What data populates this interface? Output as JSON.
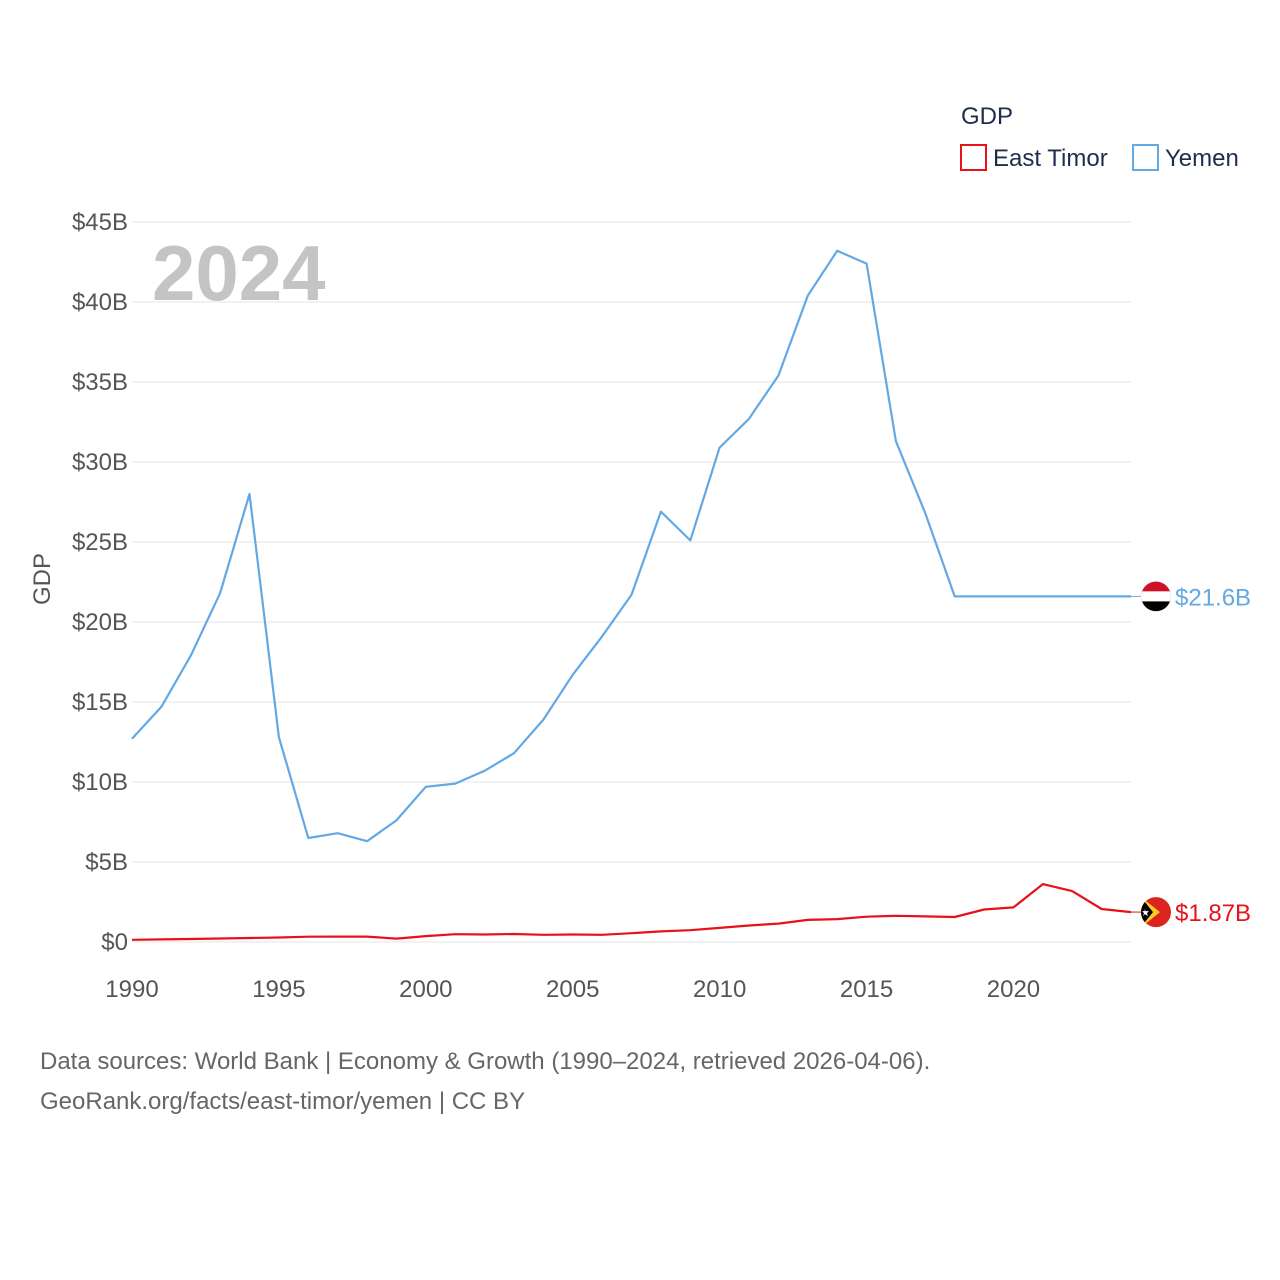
{
  "legend": {
    "title": "GDP"
  },
  "year_label": "2024",
  "footer": {
    "line1": "Data sources: World Bank | Economy & Growth (1990–2024, retrieved 2026-04-06).",
    "line2": "GeoRank.org/facts/east-timor/yemen | CC BY"
  },
  "chart_data": {
    "type": "line",
    "title": "",
    "xlabel": "",
    "ylabel": "GDP",
    "xlim": [
      1990,
      2024
    ],
    "ylim": [
      0,
      45
    ],
    "unit": "billion USD",
    "x_ticks": [
      1990,
      1995,
      2000,
      2005,
      2010,
      2015,
      2020
    ],
    "x_tick_labels": [
      "1990",
      "1995",
      "2000",
      "2005",
      "2010",
      "2015",
      "2020"
    ],
    "y_ticks": [
      0,
      5,
      10,
      15,
      20,
      25,
      30,
      35,
      40,
      45
    ],
    "y_tick_labels": [
      "$0",
      "$5B",
      "$10B",
      "$15B",
      "$20B",
      "$25B",
      "$30B",
      "$35B",
      "$40B",
      "$45B"
    ],
    "x": [
      1990,
      1991,
      1992,
      1993,
      1994,
      1995,
      1996,
      1997,
      1998,
      1999,
      2000,
      2001,
      2002,
      2003,
      2004,
      2005,
      2006,
      2007,
      2008,
      2009,
      2010,
      2011,
      2012,
      2013,
      2014,
      2015,
      2016,
      2017,
      2018,
      2019,
      2020,
      2021,
      2022,
      2023,
      2024
    ],
    "series": [
      {
        "name": "Yemen",
        "color": "#62a8e5",
        "end_label": "$21.6B",
        "flag": "yemen-flag",
        "values": [
          12.7,
          14.7,
          17.9,
          21.8,
          28.0,
          12.8,
          6.5,
          6.8,
          6.3,
          7.6,
          9.7,
          9.9,
          10.7,
          11.8,
          13.9,
          16.7,
          19.1,
          21.7,
          26.9,
          25.1,
          30.9,
          32.7,
          35.4,
          40.4,
          43.2,
          42.4,
          31.3,
          26.8,
          21.6,
          21.6,
          21.6,
          21.6,
          21.6,
          21.6,
          21.6
        ]
      },
      {
        "name": "East Timor",
        "color": "#e8111b",
        "end_label": "$1.87B",
        "flag": "east-timor-flag",
        "values": [
          0.14,
          0.16,
          0.19,
          0.22,
          0.25,
          0.28,
          0.33,
          0.34,
          0.34,
          0.21,
          0.37,
          0.49,
          0.47,
          0.5,
          0.45,
          0.47,
          0.45,
          0.55,
          0.66,
          0.74,
          0.88,
          1.03,
          1.15,
          1.38,
          1.43,
          1.58,
          1.64,
          1.6,
          1.56,
          2.03,
          2.16,
          3.62,
          3.18,
          2.06,
          1.87
        ]
      }
    ]
  }
}
